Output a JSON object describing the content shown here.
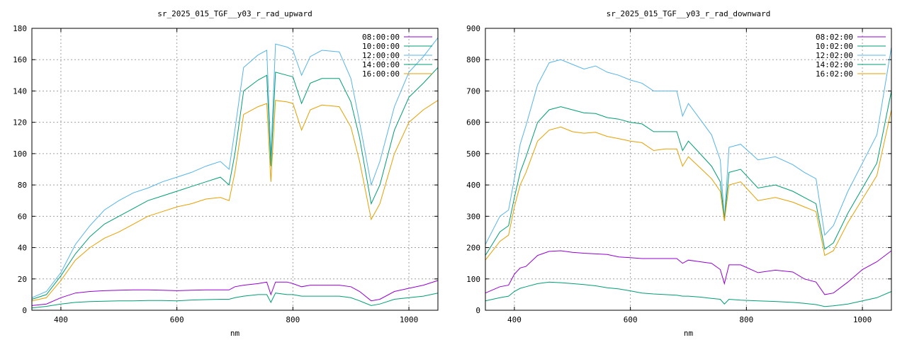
{
  "chart_data": [
    {
      "type": "line",
      "title": "sr_2025_015_TGF__y03_r_rad_upward",
      "xlabel": "nm",
      "ylabel": "",
      "xlim": [
        350,
        1050
      ],
      "ylim": [
        0,
        180
      ],
      "xticks": [
        400,
        600,
        800,
        1000
      ],
      "yticks": [
        0,
        20,
        40,
        60,
        80,
        100,
        120,
        140,
        160,
        180
      ],
      "grid": true,
      "legend": "top-right",
      "x": [
        350,
        375,
        400,
        425,
        450,
        475,
        500,
        525,
        550,
        575,
        600,
        625,
        650,
        675,
        690,
        700,
        715,
        740,
        755,
        762,
        770,
        790,
        800,
        815,
        830,
        850,
        880,
        900,
        915,
        935,
        950,
        975,
        1000,
        1025,
        1050
      ],
      "series": [
        {
          "name": "08:00:00",
          "color": "#9400d3",
          "values": [
            3,
            4,
            8,
            11,
            12,
            12.5,
            12.8,
            13,
            13,
            12.8,
            12.5,
            12.8,
            13,
            13,
            13,
            15,
            16,
            17,
            18,
            10,
            18,
            18,
            17,
            15,
            16,
            16,
            16,
            15,
            12,
            6,
            7,
            12,
            14,
            16,
            19
          ]
        },
        {
          "name": "10:00:00",
          "color": "#009e73",
          "values": [
            1.5,
            2.5,
            4,
            5,
            5.5,
            5.8,
            6,
            6,
            6.2,
            6.2,
            6,
            6.5,
            6.8,
            7,
            7,
            8,
            9,
            10,
            10,
            5,
            11,
            10,
            10,
            9,
            9,
            9,
            9,
            8,
            6,
            3,
            4,
            7,
            8,
            9,
            11
          ]
        },
        {
          "name": "12:00:00",
          "color": "#56b4e9",
          "values": [
            8,
            12,
            24,
            42,
            54,
            64,
            70,
            75,
            78,
            82,
            85,
            88,
            92,
            95,
            90,
            115,
            155,
            163,
            166,
            98,
            170,
            168,
            166,
            150,
            162,
            166,
            165,
            148,
            120,
            80,
            95,
            130,
            152,
            162,
            174
          ]
        },
        {
          "name": "14:00:00",
          "color": "#009e73",
          "values": [
            7,
            10,
            22,
            36,
            47,
            55,
            60,
            65,
            70,
            73,
            76,
            79,
            82,
            85,
            80,
            100,
            140,
            147,
            150,
            92,
            152,
            150,
            149,
            132,
            145,
            148,
            148,
            133,
            110,
            68,
            80,
            115,
            136,
            145,
            155
          ]
        },
        {
          "name": "16:00:00",
          "color": "#e69f00",
          "values": [
            6,
            8,
            19,
            32,
            40,
            46,
            50,
            55,
            60,
            63,
            66,
            68,
            71,
            72,
            70,
            88,
            125,
            130,
            132,
            82,
            134,
            133,
            132,
            115,
            128,
            131,
            130,
            117,
            95,
            58,
            68,
            100,
            120,
            128,
            134
          ]
        }
      ]
    },
    {
      "type": "line",
      "title": "sr_2025_015_TGF__y03_r_rad_downward",
      "xlabel": "nm",
      "ylabel": "",
      "xlim": [
        350,
        1050
      ],
      "ylim": [
        0,
        900
      ],
      "xticks": [
        400,
        600,
        800,
        1000
      ],
      "yticks": [
        0,
        100,
        200,
        300,
        400,
        500,
        600,
        700,
        800,
        900
      ],
      "grid": true,
      "legend": "top-right",
      "x": [
        350,
        375,
        390,
        400,
        410,
        420,
        440,
        460,
        480,
        500,
        520,
        540,
        560,
        580,
        600,
        620,
        640,
        660,
        680,
        690,
        700,
        720,
        740,
        755,
        762,
        770,
        790,
        820,
        850,
        880,
        900,
        920,
        935,
        950,
        975,
        1000,
        1025,
        1050
      ],
      "series": [
        {
          "name": "08:02:00",
          "color": "#9400d3",
          "values": [
            55,
            75,
            80,
            115,
            135,
            140,
            175,
            188,
            190,
            185,
            182,
            180,
            178,
            170,
            168,
            165,
            165,
            165,
            165,
            150,
            160,
            155,
            150,
            130,
            85,
            145,
            145,
            120,
            128,
            122,
            100,
            90,
            50,
            55,
            90,
            130,
            155,
            190
          ]
        },
        {
          "name": "10:02:00",
          "color": "#009e73",
          "values": [
            30,
            40,
            45,
            60,
            70,
            75,
            85,
            90,
            88,
            85,
            82,
            78,
            72,
            68,
            62,
            55,
            52,
            50,
            48,
            45,
            45,
            42,
            38,
            35,
            20,
            35,
            32,
            30,
            28,
            25,
            22,
            18,
            12,
            14,
            20,
            30,
            40,
            60
          ]
        },
        {
          "name": "12:02:00",
          "color": "#56b4e9",
          "values": [
            210,
            300,
            320,
            420,
            530,
            590,
            720,
            790,
            800,
            785,
            770,
            780,
            760,
            750,
            735,
            725,
            700,
            700,
            700,
            620,
            660,
            610,
            560,
            480,
            290,
            520,
            530,
            480,
            490,
            465,
            440,
            420,
            240,
            270,
            380,
            470,
            560,
            840
          ]
        },
        {
          "name": "14:02:00",
          "color": "#009e73",
          "values": [
            175,
            250,
            270,
            360,
            440,
            490,
            600,
            640,
            650,
            640,
            630,
            628,
            615,
            610,
            600,
            595,
            570,
            570,
            570,
            510,
            540,
            500,
            460,
            410,
            290,
            440,
            450,
            390,
            400,
            380,
            360,
            340,
            195,
            215,
            310,
            390,
            470,
            700
          ]
        },
        {
          "name": "16:02:00",
          "color": "#e69f00",
          "values": [
            160,
            220,
            240,
            330,
            400,
            440,
            540,
            575,
            585,
            570,
            565,
            568,
            555,
            548,
            540,
            535,
            510,
            515,
            515,
            460,
            490,
            455,
            420,
            380,
            285,
            400,
            410,
            350,
            360,
            345,
            330,
            315,
            175,
            190,
            280,
            355,
            430,
            640
          ]
        }
      ]
    }
  ]
}
